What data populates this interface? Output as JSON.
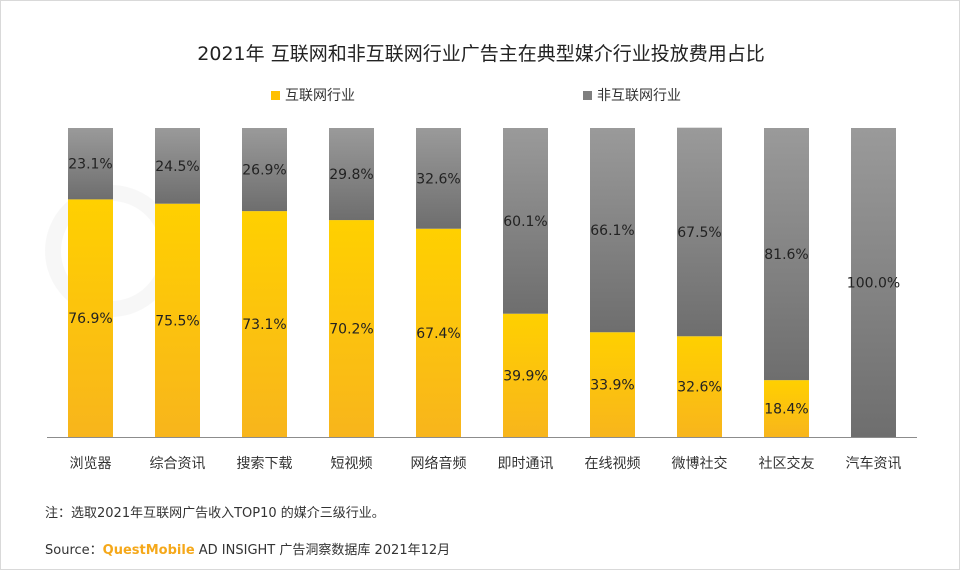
{
  "title": "2021年 互联网和非互联网行业广告主在典型媒介行业投放费用占比",
  "legend": [
    {
      "label": "互联网行业",
      "color": "#FFC000"
    },
    {
      "label": "非互联网行业",
      "color": "#7F7F7F"
    }
  ],
  "chart_data": {
    "type": "bar",
    "stacked": true,
    "percent": true,
    "categories": [
      "浏览器",
      "综合资讯",
      "搜索下载",
      "短视频",
      "网络音频",
      "即时通讯",
      "在线视频",
      "微博社交",
      "社区交友",
      "汽车资讯"
    ],
    "series": [
      {
        "name": "互联网行业",
        "values": [
          76.9,
          75.5,
          73.1,
          70.2,
          67.4,
          39.9,
          33.9,
          32.6,
          18.4,
          0
        ],
        "color": "#FFC000"
      },
      {
        "name": "非互联网行业",
        "values": [
          23.1,
          24.5,
          26.9,
          29.8,
          32.6,
          60.1,
          66.1,
          67.5,
          81.6,
          100.0
        ],
        "color": "#7F7F7F"
      }
    ],
    "labels": {
      "互联网行业": [
        "76.9%",
        "75.5%",
        "73.1%",
        "70.2%",
        "67.4%",
        "39.9%",
        "33.9%",
        "32.6%",
        "18.4%",
        ""
      ],
      "非互联网行业": [
        "23.1%",
        "24.5%",
        "26.9%",
        "29.8%",
        "32.6%",
        "60.1%",
        "66.1%",
        "67.5%",
        "81.6%",
        "100.0%"
      ]
    },
    "ylim": [
      0,
      100
    ],
    "grid": false,
    "legend_position": "top-center"
  },
  "footer": {
    "note": "注：选取2021年互联网广告收入TOP10 的媒介三级行业。",
    "source_prefix": "Source：",
    "source_brand": "QuestMobile",
    "source_rest": " AD INSIGHT 广告洞察数据库 2021年12月"
  },
  "watermark_text": "QUESTMOBILE"
}
